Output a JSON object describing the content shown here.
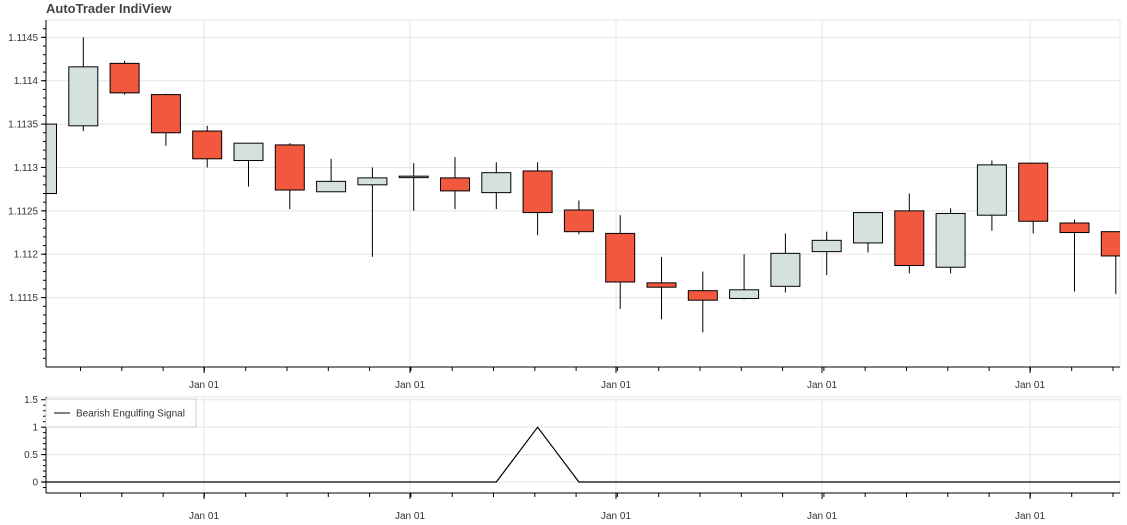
{
  "app": {
    "title": "AutoTrader IndiView"
  },
  "chart_data": [
    {
      "type": "candlestick",
      "xlabel": "",
      "ylabel": "",
      "ylim": [
        1.1107,
        1.1147
      ],
      "y_ticks": [
        1.1115,
        1.112,
        1.1125,
        1.113,
        1.1135,
        1.114,
        1.1145
      ],
      "y_tick_labels": [
        "1.1115",
        "1.112",
        "1.1125",
        "1.113",
        "1.1135",
        "1.114",
        "1.1145"
      ],
      "x_tick_labels": [
        "Jan 01",
        "Jan 01",
        "Jan 01",
        "Jan 01",
        "Jan 01"
      ],
      "grid": true,
      "colors": {
        "up": "#d5e1dd",
        "down": "#f2583e",
        "outline": "#000000"
      },
      "candles": [
        {
          "open": 1.1127,
          "high": 1.1135,
          "low": 1.1127,
          "close": 1.1135
        },
        {
          "open": 1.11348,
          "high": 1.1145,
          "low": 1.11342,
          "close": 1.11416
        },
        {
          "open": 1.1142,
          "high": 1.11423,
          "low": 1.11384,
          "close": 1.11386
        },
        {
          "open": 1.11384,
          "high": 1.11385,
          "low": 1.11325,
          "close": 1.1134
        },
        {
          "open": 1.11342,
          "high": 1.11348,
          "low": 1.113,
          "close": 1.1131
        },
        {
          "open": 1.11308,
          "high": 1.11328,
          "low": 1.11278,
          "close": 1.11328
        },
        {
          "open": 1.11326,
          "high": 1.11328,
          "low": 1.11252,
          "close": 1.11274
        },
        {
          "open": 1.11272,
          "high": 1.1131,
          "low": 1.11272,
          "close": 1.11284
        },
        {
          "open": 1.1128,
          "high": 1.113,
          "low": 1.11197,
          "close": 1.11288
        },
        {
          "open": 1.1129,
          "high": 1.11305,
          "low": 1.1125,
          "close": 1.1129
        },
        {
          "open": 1.11288,
          "high": 1.11312,
          "low": 1.11252,
          "close": 1.11273
        },
        {
          "open": 1.11271,
          "high": 1.11306,
          "low": 1.11252,
          "close": 1.11294
        },
        {
          "open": 1.11296,
          "high": 1.11306,
          "low": 1.11222,
          "close": 1.11248
        },
        {
          "open": 1.11251,
          "high": 1.11262,
          "low": 1.11223,
          "close": 1.11226
        },
        {
          "open": 1.11224,
          "high": 1.11245,
          "low": 1.11137,
          "close": 1.11168
        },
        {
          "open": 1.11167,
          "high": 1.11197,
          "low": 1.11125,
          "close": 1.11162
        },
        {
          "open": 1.11158,
          "high": 1.1118,
          "low": 1.1111,
          "close": 1.11147
        },
        {
          "open": 1.11149,
          "high": 1.112,
          "low": 1.11148,
          "close": 1.11159
        },
        {
          "open": 1.11163,
          "high": 1.11224,
          "low": 1.11156,
          "close": 1.11201
        },
        {
          "open": 1.11203,
          "high": 1.11226,
          "low": 1.11176,
          "close": 1.11216
        },
        {
          "open": 1.11213,
          "high": 1.11248,
          "low": 1.11202,
          "close": 1.11248
        },
        {
          "open": 1.1125,
          "high": 1.1127,
          "low": 1.11178,
          "close": 1.11187
        },
        {
          "open": 1.11185,
          "high": 1.11253,
          "low": 1.11178,
          "close": 1.11247
        },
        {
          "open": 1.11245,
          "high": 1.11308,
          "low": 1.11227,
          "close": 1.11303
        },
        {
          "open": 1.11305,
          "high": 1.11305,
          "low": 1.11224,
          "close": 1.11238
        },
        {
          "open": 1.11236,
          "high": 1.1124,
          "low": 1.11157,
          "close": 1.11225
        },
        {
          "open": 1.11226,
          "high": 1.11226,
          "low": 1.11154,
          "close": 1.11198
        }
      ]
    },
    {
      "type": "line",
      "ylim": [
        -0.2,
        1.55
      ],
      "y_ticks": [
        0,
        0.5,
        1,
        1.5
      ],
      "y_tick_labels": [
        "0",
        "0.5",
        "1",
        "1.5"
      ],
      "x_tick_labels": [
        "Jan 01",
        "Jan 01",
        "Jan 01",
        "Jan 01",
        "Jan 01"
      ],
      "grid": true,
      "legend_position": "top-left",
      "series": [
        {
          "name": "Bearish Engulfing Signal",
          "color": "#000000",
          "values": [
            0,
            0,
            0,
            0,
            0,
            0,
            0,
            0,
            0,
            0,
            0,
            0,
            1,
            0,
            0,
            0,
            0,
            0,
            0,
            0,
            0,
            0,
            0,
            0,
            0,
            0,
            0
          ]
        }
      ]
    }
  ]
}
